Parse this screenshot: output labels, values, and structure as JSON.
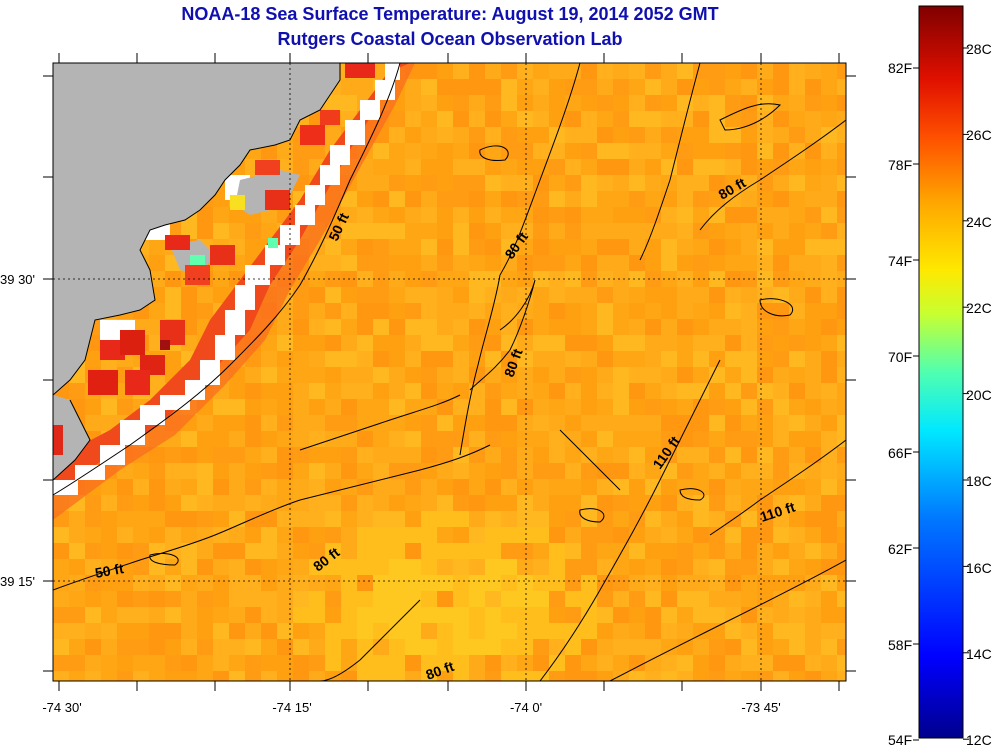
{
  "header": {
    "title": "NOAA-18 Sea Surface Temperature:  August 19, 2014 2052 GMT",
    "subtitle": "Rutgers Coastal Ocean Observation Lab"
  },
  "map": {
    "lon_labels": [
      "-74 30'",
      "-74 15'",
      "-74 0'",
      "-73 45'"
    ],
    "lat_labels": [
      "39 30'",
      "39 15'"
    ],
    "contour_labels": [
      {
        "text": "50 ft",
        "depth_ft": 50
      },
      {
        "text": "50 ft",
        "depth_ft": 50
      },
      {
        "text": "80 ft",
        "depth_ft": 80
      },
      {
        "text": "80 ft",
        "depth_ft": 80
      },
      {
        "text": "80 ft",
        "depth_ft": 80
      },
      {
        "text": "80 ft",
        "depth_ft": 80
      },
      {
        "text": "80 ft",
        "depth_ft": 80
      },
      {
        "text": "110 ft",
        "depth_ft": 110
      },
      {
        "text": "110 ft",
        "depth_ft": 110
      }
    ],
    "colors": {
      "land": "#b4b4b4",
      "ocean_base": "#ffa614",
      "coastal_warm": "#e8401a"
    }
  },
  "colorbar": {
    "fahrenheit_labels": [
      "82F",
      "78F",
      "74F",
      "70F",
      "66F",
      "62F",
      "58F",
      "54F"
    ],
    "celsius_labels": [
      "28C",
      "26C",
      "24C",
      "22C",
      "20C",
      "18C",
      "16C",
      "14C",
      "12C"
    ]
  }
}
